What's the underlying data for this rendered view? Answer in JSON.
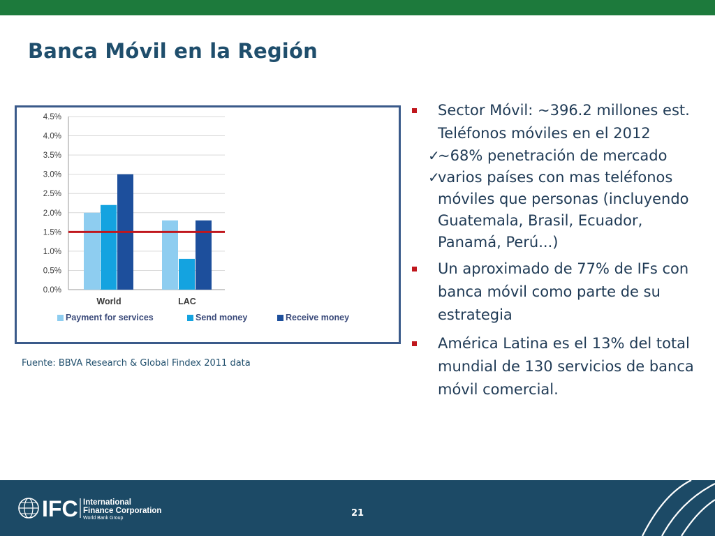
{
  "slide": {
    "title": "Banca Móvil en la Región",
    "source_note": "Fuente: BBVA Research & Global Findex 2011 data",
    "page_number": "21"
  },
  "bullets": [
    {
      "text": "Sector Móvil: ~396.2 millones est. Teléfonos móviles en el 2012",
      "subitems": [
        "~68% penetración de mercado",
        " varios países con mas teléfonos móviles que personas (incluyendo Guatemala, Brasil, Ecuador, Panamá, Perú...)"
      ]
    },
    {
      "text": "Un aproximado de 77% de IFs con banca móvil como parte de su estrategia",
      "subitems": []
    },
    {
      "text": "América Latina es el 13% del total mundial de 130 servicios de banca móvil comercial.",
      "subitems": []
    }
  ],
  "logo": {
    "brand": "IFC",
    "line1": "International",
    "line2": "Finance Corporation",
    "line3": "World Bank Group"
  },
  "colors": {
    "title": "#1f4e6c",
    "top_band": "#1d7a3c",
    "footer": "#1c4a66",
    "bullet_marker": "#c0171d",
    "reference_line": "#c0171d"
  },
  "chart_data": {
    "type": "bar",
    "categories": [
      "World",
      "LAC"
    ],
    "series": [
      {
        "name": "Payment for services",
        "values": [
          2.0,
          1.8
        ],
        "color": "#8ecdf0"
      },
      {
        "name": "Send money",
        "values": [
          2.2,
          0.8
        ],
        "color": "#14a3e0"
      },
      {
        "name": "Receive money",
        "values": [
          3.0,
          1.8
        ],
        "color": "#1d4f9c"
      }
    ],
    "reference_line": 1.5,
    "ylim": [
      0,
      4.5
    ],
    "yticks": [
      "0.0%",
      "0.5%",
      "1.0%",
      "1.5%",
      "2.0%",
      "2.5%",
      "3.0%",
      "3.5%",
      "4.0%",
      "4.5%"
    ],
    "grid": true,
    "legend_position": "bottom"
  }
}
